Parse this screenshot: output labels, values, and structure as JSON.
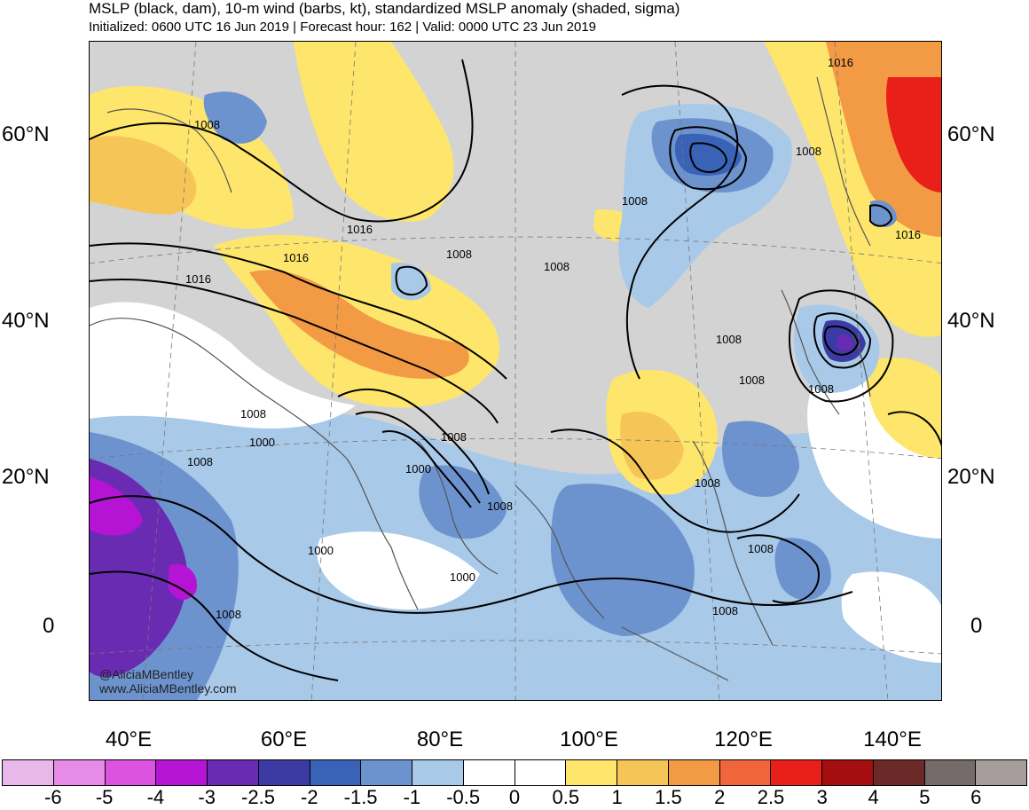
{
  "header": {
    "title": "MSLP (black, dam), 10-m wind (barbs, kt), standardized MSLP anomaly (shaded, sigma)",
    "subtitle": "Initialized: 0600 UTC 16 Jun 2019 | Forecast hour: 162 | Valid: 0000 UTC 23 Jun 2019"
  },
  "map": {
    "lat_labels": [
      "60°N",
      "40°N",
      "20°N",
      "0"
    ],
    "lon_labels": [
      "40°E",
      "60°E",
      "80°E",
      "100°E",
      "120°E",
      "140°E"
    ],
    "contour_labels": [
      "1008",
      "1016",
      "1016",
      "1016",
      "1008",
      "1008",
      "1008",
      "1016",
      "1016",
      "1008",
      "1008",
      "1008",
      "1008",
      "1000",
      "1008",
      "1008",
      "1000",
      "1008",
      "1008",
      "1000",
      "1000",
      "1008",
      "1008",
      "1008",
      "1008"
    ],
    "credit": [
      "@AliciaMBentley",
      "www.AliciaMBentley.com"
    ],
    "colors": {
      "land_gray": "#d3d3d3",
      "coast": "#555555",
      "contour": "#000000"
    }
  },
  "colorbar": {
    "labels": [
      "-6",
      "-5",
      "-4",
      "-3",
      "-2.5",
      "-2",
      "-1.5",
      "-1",
      "-0.5",
      "0",
      "0.5",
      "1",
      "1.5",
      "2",
      "2.5",
      "3",
      "4",
      "5",
      "6"
    ],
    "colors": [
      "#e8b8ea",
      "#e78be8",
      "#dc53e0",
      "#b514d4",
      "#6a2bb3",
      "#3c3ba3",
      "#3a63b8",
      "#6d93cf",
      "#a9c9e8",
      "#ffffff",
      "#ffffff",
      "#fde66b",
      "#f6c557",
      "#f39a45",
      "#f0663a",
      "#e91f1a",
      "#a40e0e",
      "#6b2a27",
      "#756b6b",
      "#a59c9b"
    ]
  }
}
